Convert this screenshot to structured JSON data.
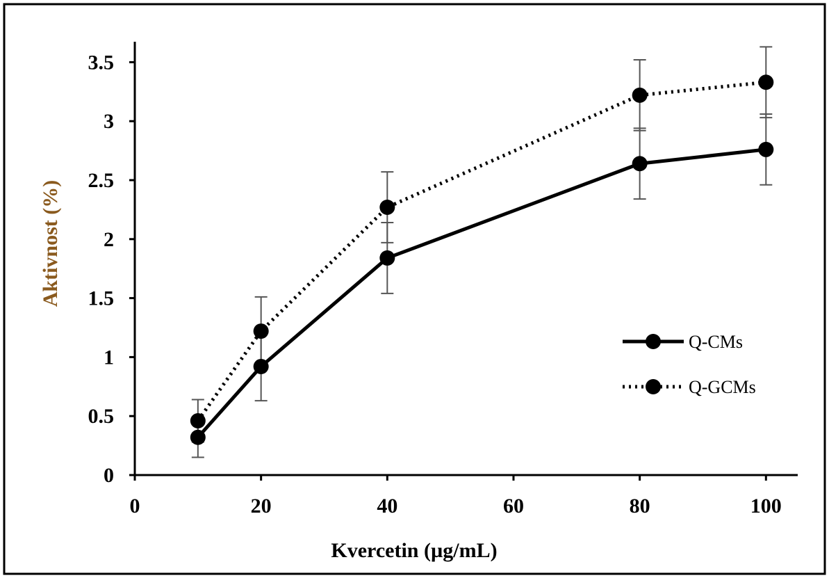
{
  "chart_data": {
    "type": "line",
    "xlabel": "Kvercetin (µg/mL)",
    "ylabel": "Aktivnost (%)",
    "xlim": [
      0,
      105
    ],
    "ylim": [
      0,
      3.5
    ],
    "x_ticks": [
      "0",
      "20",
      "40",
      "60",
      "80",
      "100"
    ],
    "y_ticks": [
      "0",
      "0.5",
      "1",
      "1.5",
      "2",
      "2.5",
      "3",
      "3.5"
    ],
    "grid": false,
    "legend_position": "center-right",
    "x": [
      10,
      20,
      40,
      80,
      100
    ],
    "series": [
      {
        "name": "Q-CMs",
        "style": "solid",
        "values": [
          0.32,
          0.92,
          1.84,
          2.64,
          2.76
        ],
        "errors": [
          0.17,
          0.29,
          0.3,
          0.3,
          0.3
        ]
      },
      {
        "name": "Q-GCMs",
        "style": "dotted",
        "values": [
          0.46,
          1.22,
          2.27,
          3.22,
          3.33
        ],
        "errors": [
          0.18,
          0.29,
          0.3,
          0.3,
          0.3
        ]
      }
    ]
  },
  "colors": {
    "ylabel": "#8a5a1e",
    "axis": "#000000",
    "line": "#000000",
    "errorbar": "#555555"
  }
}
